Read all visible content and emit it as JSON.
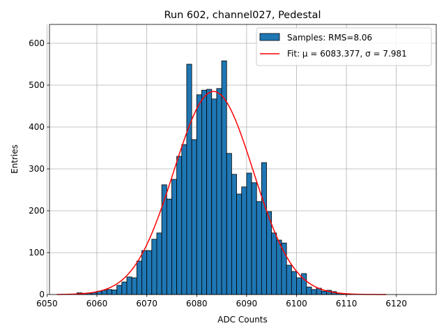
{
  "chart_data": {
    "type": "bar",
    "title": "Run 602, channel027, Pedestal",
    "xlabel": "ADC Counts",
    "ylabel": "Entries",
    "xlim": [
      6050.5,
      6128
    ],
    "ylim": [
      0,
      645
    ],
    "xticks": [
      6050,
      6060,
      6070,
      6080,
      6090,
      6100,
      6110,
      6120
    ],
    "yticks": [
      0,
      100,
      200,
      300,
      400,
      500,
      600
    ],
    "grid": true,
    "legend_position": "top-right",
    "histogram": {
      "name": "Samples: RMS=8.06",
      "bin_width": 1,
      "bin_starts": [
        6056,
        6057,
        6058,
        6059,
        6060,
        6061,
        6062,
        6063,
        6064,
        6065,
        6066,
        6067,
        6068,
        6069,
        6070,
        6071,
        6072,
        6073,
        6074,
        6075,
        6076,
        6077,
        6078,
        6079,
        6080,
        6081,
        6082,
        6083,
        6084,
        6085,
        6086,
        6087,
        6088,
        6089,
        6090,
        6091,
        6092,
        6093,
        6094,
        6095,
        6096,
        6097,
        6098,
        6099,
        6100,
        6101,
        6102,
        6103,
        6104,
        6105,
        6106,
        6107,
        6108,
        6109,
        6110
      ],
      "counts": [
        4,
        3,
        3,
        5,
        8,
        10,
        12,
        11,
        22,
        30,
        42,
        40,
        80,
        105,
        105,
        132,
        147,
        262,
        228,
        275,
        330,
        358,
        550,
        370,
        477,
        488,
        490,
        467,
        492,
        558,
        337,
        287,
        240,
        257,
        290,
        267,
        222,
        315,
        198,
        147,
        130,
        123,
        70,
        55,
        40,
        50,
        18,
        12,
        15,
        8,
        10,
        7,
        3,
        2,
        1
      ],
      "color": "#1f77b4"
    },
    "fit": {
      "name": "Fit: μ = 6083.377, σ = 7.981",
      "mu": 6083.377,
      "sigma": 7.981,
      "amplitude": 485,
      "x_range": [
        6052,
        6118
      ],
      "color": "#ff0000"
    }
  }
}
